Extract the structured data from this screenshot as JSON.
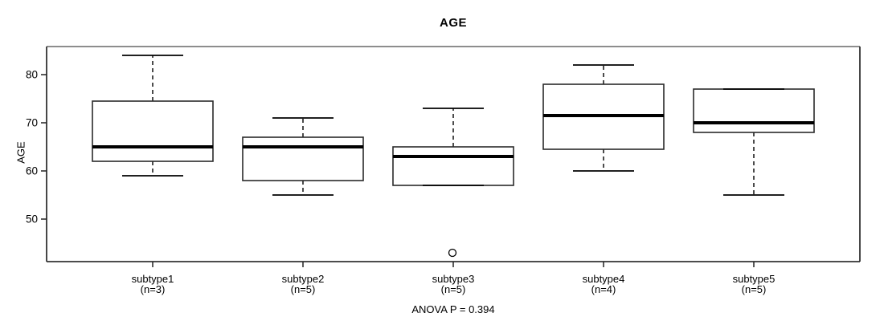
{
  "figure": {
    "title": "AGE",
    "y_axis_label": "AGE",
    "annotation": "ANOVA P = 0.394"
  },
  "chart_data": {
    "type": "boxplot",
    "title": "AGE",
    "xlabel": "",
    "ylabel": "AGE",
    "y_ticks": [
      50,
      60,
      70,
      80
    ],
    "ylim": [
      41,
      86
    ],
    "grid": false,
    "legend": "none",
    "annotation": "ANOVA P = 0.394",
    "categories": [
      "subtype1",
      "subtype2",
      "subtype3",
      "subtype4",
      "subtype5"
    ],
    "category_sublabels": [
      "(n=3)",
      "(n=5)",
      "(n=5)",
      "(n=4)",
      "(n=5)"
    ],
    "groups": [
      {
        "label": "subtype1",
        "n_label": "(n=3)",
        "n": 3,
        "whisker_low": 59,
        "q1": 62,
        "median": 65,
        "q3": 74.5,
        "whisker_high": 84,
        "outliers": []
      },
      {
        "label": "subtype2",
        "n_label": "(n=5)",
        "n": 5,
        "whisker_low": 55,
        "q1": 58,
        "median": 65,
        "q3": 67,
        "whisker_high": 71,
        "outliers": []
      },
      {
        "label": "subtype3",
        "n_label": "(n=5)",
        "n": 5,
        "whisker_low": 57,
        "q1": 57,
        "median": 63,
        "q3": 65,
        "whisker_high": 73,
        "outliers": [
          43
        ]
      },
      {
        "label": "subtype4",
        "n_label": "(n=4)",
        "n": 4,
        "whisker_low": 60,
        "q1": 64.5,
        "median": 71.5,
        "q3": 78,
        "whisker_high": 82,
        "outliers": []
      },
      {
        "label": "subtype5",
        "n_label": "(n=5)",
        "n": 5,
        "whisker_low": 55,
        "q1": 68,
        "median": 70,
        "q3": 77,
        "whisker_high": 77,
        "outliers": []
      }
    ],
    "colors": {
      "box_fill": "#ffffff",
      "box_stroke": "#2a2a2a",
      "median": "#000000",
      "frame_top": "#8d8d8d",
      "frame": "#333333"
    }
  }
}
